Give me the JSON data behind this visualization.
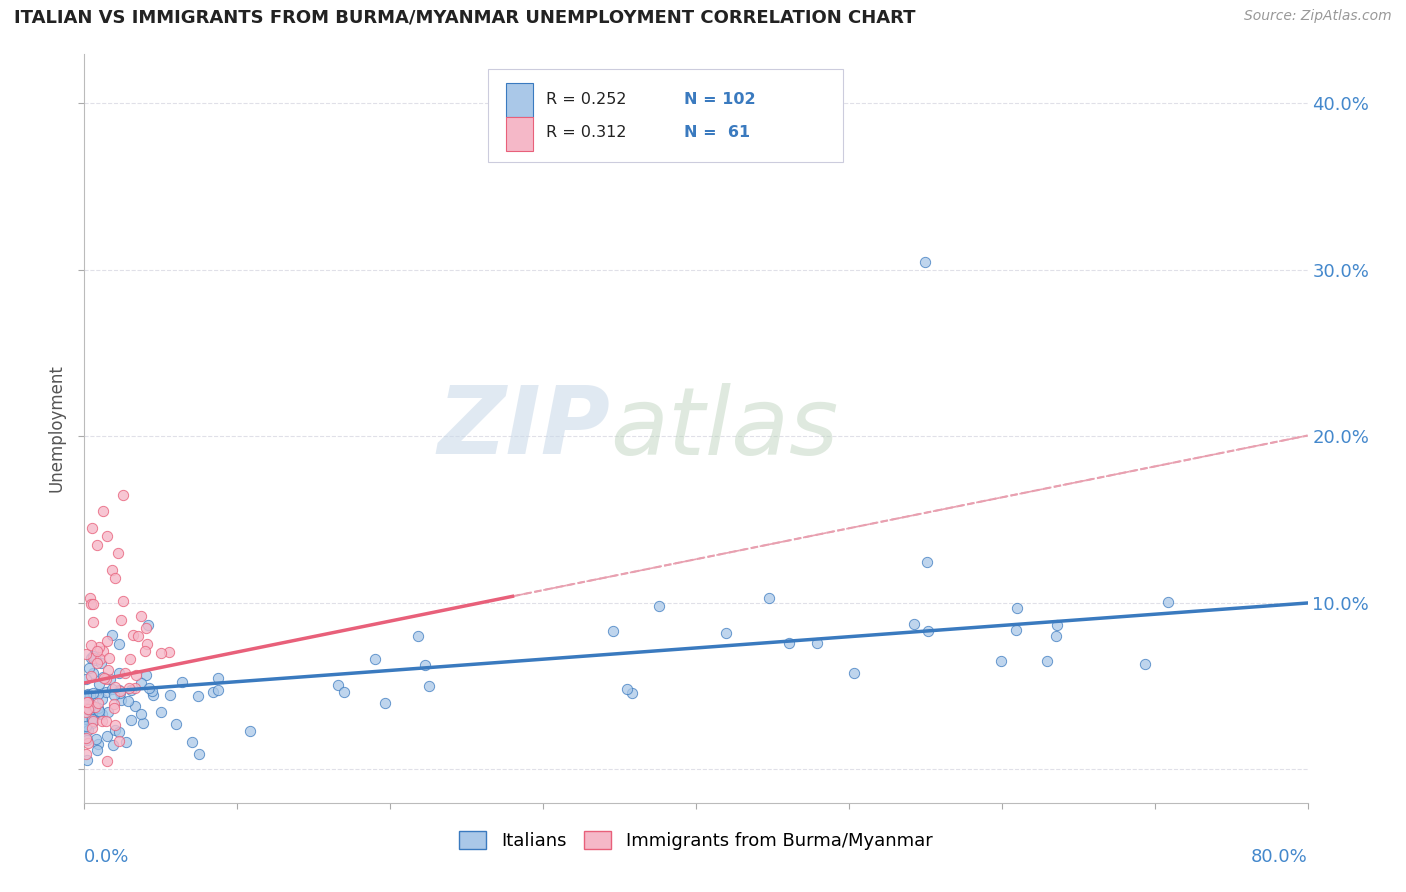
{
  "title": "ITALIAN VS IMMIGRANTS FROM BURMA/MYANMAR UNEMPLOYMENT CORRELATION CHART",
  "source": "Source: ZipAtlas.com",
  "ylabel": "Unemployment",
  "ytick_labels": [
    "",
    "10.0%",
    "20.0%",
    "30.0%",
    "40.0%"
  ],
  "xlim": [
    0.0,
    0.8
  ],
  "ylim": [
    -0.02,
    0.43
  ],
  "watermark_zip": "ZIP",
  "watermark_atlas": "atlas",
  "legend_label1": "Italians",
  "legend_label2": "Immigrants from Burma/Myanmar",
  "color_italian": "#aac8e8",
  "color_burma": "#f5b8c8",
  "trendline_italian_color": "#3a7abf",
  "trendline_burma_color": "#e8607a",
  "trendline_burma_dashed_color": "#e8a0b0",
  "legend_box_color": "#e8e8f0",
  "legend_text_color": "#3a7abf",
  "axis_label_color": "#4488cc",
  "grid_color": "#e0e0e8"
}
